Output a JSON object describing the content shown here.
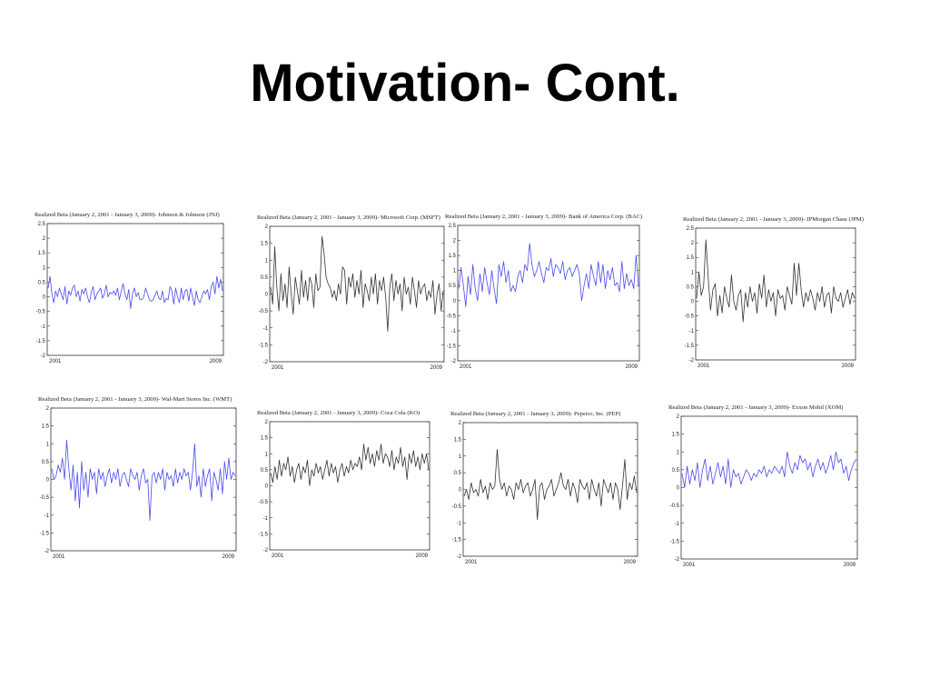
{
  "slide": {
    "title": "Motivation- Cont."
  },
  "chart_data": [
    {
      "type": "line",
      "title": "Realized Beta (January 2, 2001 - January 3, 2009)- Johnson & Johnson (JNJ)",
      "color": "#4a4af0",
      "ylim": [
        -2,
        2.5
      ],
      "yticks": [
        "2.5",
        "2",
        "1.5",
        "1",
        "0.5",
        "0",
        "-0.5",
        "-1",
        "-1.5",
        "-2"
      ],
      "x_labels": [
        "2001",
        "2009"
      ],
      "series": [
        {
          "values": [
            0.3,
            0.7,
            0.1,
            -0.2,
            0.2,
            0.0,
            0.3,
            0.1,
            -0.1,
            0.35,
            -0.25,
            0.2,
            0.05,
            0.3,
            0.4,
            0.0,
            0.2,
            -0.15,
            0.25,
            0.1,
            0.3,
            0.0,
            -0.2,
            0.15,
            0.35,
            -0.1,
            0.1,
            0.2,
            0.3,
            -0.05,
            0.1,
            0.4,
            0.0,
            0.15,
            0.1,
            0.2,
            0.05,
            0.3,
            -0.1,
            0.2,
            0.45,
            0.1,
            -0.1,
            0.25,
            -0.4,
            0.1,
            0.3,
            0.0,
            0.15,
            -0.1,
            -0.1,
            0.0,
            0.3,
            0.1,
            -0.1,
            -0.15,
            -0.1,
            0.05,
            0.2,
            -0.05,
            -0.1,
            0.2,
            -0.2,
            -0.05,
            -0.1,
            0.35,
            0.2,
            -0.25,
            0.3,
            0.0,
            -0.2,
            0.3,
            -0.1,
            0.2,
            0.25,
            -0.15,
            0.3,
            0.0,
            -0.3,
            0.2,
            -0.1,
            -0.2,
            0.0,
            0.2,
            0.1,
            0.25,
            -0.1,
            0.35,
            0.5,
            0.1,
            0.7,
            0.3,
            0.6,
            0.2
          ]
        }
      ]
    },
    {
      "type": "line",
      "title": "Realized Beta (January 2, 2001 - January 3, 2009)- Microsoft Corp. (MSFT)",
      "color": "#333333",
      "ylim": [
        -2,
        2
      ],
      "yticks": [
        "2",
        "1.5",
        "1",
        "0.5",
        "0",
        "-0.5",
        "-1",
        "-1.5",
        "-2"
      ],
      "x_labels": [
        "2001",
        "2009"
      ],
      "series": [
        {
          "values": [
            0.2,
            -0.3,
            1.4,
            0.2,
            -0.5,
            0.6,
            -0.2,
            0.3,
            -0.4,
            0.8,
            0.0,
            -0.6,
            0.5,
            0.1,
            -0.3,
            0.7,
            -0.1,
            0.4,
            -0.2,
            0.5,
            0.3,
            -0.4,
            0.6,
            0.1,
            0.2,
            1.7,
            1.2,
            0.5,
            0.3,
            0.2,
            -0.1,
            0.1,
            -0.2,
            0.3,
            0.0,
            0.8,
            0.7,
            -0.3,
            0.5,
            0.2,
            0.6,
            -0.1,
            0.4,
            0.0,
            0.7,
            -0.4,
            0.3,
            0.1,
            -0.2,
            0.5,
            0.0,
            0.6,
            -0.3,
            0.4,
            0.1,
            0.5,
            -0.1,
            -1.1,
            0.2,
            0.6,
            -0.2,
            0.4,
            0.0,
            0.3,
            -0.5,
            0.5,
            0.0,
            0.2,
            -0.3,
            0.5,
            0.1,
            -0.4,
            0.4,
            0.0,
            0.2,
            0.3,
            -0.2,
            0.1,
            -0.1,
            0.4,
            -0.6,
            0.0,
            0.3,
            -0.5,
            0.1
          ]
        }
      ]
    },
    {
      "type": "line",
      "title": "Realized Beta (January 2, 2001 - January 3, 2009)- Bank of America Corp. (BAC)",
      "color": "#4a4af0",
      "ylim": [
        -2,
        2.5
      ],
      "yticks": [
        "2.5",
        "2",
        "1.5",
        "1",
        "0.5",
        "0",
        "-0.5",
        "-1",
        "-1.5",
        "-2"
      ],
      "x_labels": [
        "2001",
        "2009"
      ],
      "series": [
        {
          "values": [
            0.4,
            1.1,
            0.5,
            -0.2,
            0.8,
            0.2,
            1.2,
            0.4,
            0.0,
            0.9,
            0.3,
            1.1,
            0.6,
            0.2,
            1.0,
            0.4,
            -0.1,
            1.2,
            0.8,
            1.3,
            0.6,
            1.0,
            0.3,
            0.5,
            0.3,
            0.8,
            1.0,
            0.6,
            1.2,
            1.0,
            1.9,
            1.2,
            0.8,
            1.0,
            1.3,
            0.9,
            0.6,
            1.1,
            1.0,
            1.4,
            0.8,
            1.2,
            1.1,
            0.9,
            1.3,
            0.7,
            1.0,
            1.1,
            0.8,
            1.0,
            1.2,
            0.9,
            0.0,
            0.5,
            0.9,
            0.4,
            1.2,
            0.8,
            0.5,
            1.3,
            0.6,
            1.2,
            0.4,
            1.0,
            0.7,
            1.1,
            0.5,
            0.6,
            0.3,
            1.3,
            0.4,
            0.9,
            0.5,
            0.7,
            0.4,
            1.5,
            0.5
          ]
        }
      ]
    },
    {
      "type": "line",
      "title": "Realized Beta (January 2, 2001 - January 3, 2009)- JPMorgan Chase (JPM)",
      "color": "#333333",
      "ylim": [
        -2,
        2.5
      ],
      "yticks": [
        "2.5",
        "2",
        "1.5",
        "1",
        "0.5",
        "0",
        "-0.5",
        "-1",
        "-1.5",
        "-2"
      ],
      "x_labels": [
        "2001",
        "2009"
      ],
      "series": [
        {
          "values": [
            0.1,
            1.0,
            0.2,
            0.5,
            2.1,
            0.8,
            -0.3,
            0.4,
            0.6,
            -0.5,
            0.2,
            -0.4,
            0.5,
            0.1,
            -0.2,
            0.9,
            0.0,
            -0.3,
            0.2,
            0.4,
            -0.7,
            0.3,
            -0.2,
            0.5,
            0.0,
            0.3,
            -0.4,
            0.6,
            0.1,
            0.9,
            -0.2,
            0.4,
            0.0,
            0.3,
            -0.5,
            0.4,
            0.1,
            0.2,
            -0.3,
            0.5,
            0.2,
            -0.1,
            1.3,
            0.2,
            1.3,
            0.4,
            -0.2,
            0.3,
            0.0,
            0.4,
            0.1,
            -0.3,
            0.3,
            0.0,
            0.5,
            -0.2,
            0.2,
            0.3,
            -0.4,
            0.5,
            0.1,
            0.0,
            0.3,
            -0.2,
            0.1,
            0.4,
            -0.1,
            0.3,
            0.1
          ]
        }
      ]
    },
    {
      "type": "line",
      "title": "Realized Beta (January 2, 2001 - January 3, 2009)- Wal-Mart Stores Inc. (WMT)",
      "color": "#4a4af0",
      "ylim": [
        -2,
        2
      ],
      "yticks": [
        "2",
        "1.5",
        "1",
        "0.5",
        "0",
        "-0.5",
        "-1",
        "-1.5",
        "-2"
      ],
      "x_labels": [
        "2001",
        "2009"
      ],
      "series": [
        {
          "values": [
            0.3,
            0.0,
            0.1,
            0.4,
            0.2,
            0.6,
            0.0,
            1.1,
            0.3,
            -0.3,
            0.4,
            -0.6,
            0.2,
            -0.8,
            0.5,
            -0.3,
            0.2,
            -0.5,
            0.3,
            0.0,
            0.2,
            -0.4,
            0.3,
            0.0,
            0.2,
            -0.2,
            0.1,
            0.3,
            -0.1,
            0.2,
            0.0,
            0.3,
            -0.2,
            0.1,
            0.2,
            0.0,
            -0.2,
            0.3,
            0.1,
            0.0,
            0.2,
            -0.3,
            0.1,
            0.3,
            -0.1,
            0.0,
            -1.15,
            0.1,
            0.2,
            -0.1,
            0.2,
            0.0,
            0.3,
            -0.3,
            0.2,
            0.0,
            0.1,
            -0.2,
            0.3,
            -0.1,
            0.2,
            0.0,
            0.3,
            0.1,
            0.2,
            -0.3,
            0.2,
            1.0,
            -0.2,
            0.1,
            -0.5,
            0.3,
            -0.2,
            0.1,
            0.3,
            -0.6,
            0.2,
            0.0,
            -0.3,
            0.3,
            -0.4,
            0.5,
            0.0,
            0.6,
            0.0,
            0.2,
            0.1
          ]
        }
      ]
    },
    {
      "type": "line",
      "title": "Realized Beta (January 2, 2001 - January 3, 2009)- Coca Cola (KO)",
      "color": "#333333",
      "ylim": [
        -2,
        2
      ],
      "yticks": [
        "2",
        "1.5",
        "1",
        "0.5",
        "0",
        "-0.5",
        "-1",
        "-1.5",
        "-2"
      ],
      "x_labels": [
        "2001",
        "2009"
      ],
      "series": [
        {
          "values": [
            0.4,
            0.1,
            0.6,
            0.2,
            0.8,
            0.3,
            0.7,
            0.5,
            0.9,
            0.3,
            0.6,
            0.1,
            0.5,
            0.7,
            0.2,
            0.6,
            0.4,
            0.8,
            0.0,
            0.5,
            0.3,
            0.7,
            0.4,
            0.6,
            0.2,
            0.5,
            0.8,
            0.3,
            0.7,
            0.4,
            0.6,
            0.1,
            0.5,
            0.7,
            0.3,
            0.6,
            0.4,
            0.8,
            0.5,
            0.7,
            0.6,
            0.9,
            0.5,
            1.3,
            0.8,
            1.2,
            0.7,
            1.0,
            0.6,
            1.1,
            0.8,
            1.3,
            0.7,
            1.0,
            0.9,
            0.6,
            1.1,
            0.5,
            0.9,
            0.7,
            1.2,
            0.6,
            0.9,
            0.2,
            1.0,
            0.7,
            1.1,
            0.6,
            0.9,
            0.5,
            1.0,
            0.7,
            1.0,
            0.5
          ]
        }
      ]
    },
    {
      "type": "line",
      "title": "Realized Beta (January 2, 2001 - January 3, 2009)- Pepsico, Inc. (PEP)",
      "color": "#333333",
      "ylim": [
        -2,
        2
      ],
      "yticks": [
        "2",
        "1.5",
        "1",
        "0.5",
        "0",
        "-0.5",
        "-1",
        "-1.5",
        "-2"
      ],
      "x_labels": [
        "2001",
        "2009"
      ],
      "series": [
        {
          "values": [
            -0.2,
            0.0,
            -0.3,
            0.2,
            -0.1,
            0.0,
            -0.2,
            0.3,
            -0.1,
            0.1,
            -0.3,
            0.2,
            0.0,
            0.1,
            1.2,
            0.3,
            0.0,
            0.2,
            -0.2,
            0.1,
            0.0,
            -0.3,
            0.2,
            0.0,
            0.3,
            -0.1,
            0.1,
            0.2,
            -0.2,
            0.0,
            0.3,
            -0.9,
            0.1,
            0.2,
            -0.3,
            0.0,
            0.1,
            0.3,
            -0.2,
            0.0,
            0.2,
            0.5,
            0.1,
            0.0,
            0.3,
            -0.2,
            0.2,
            0.0,
            -0.4,
            0.3,
            0.1,
            0.0,
            0.2,
            -0.3,
            0.3,
            0.0,
            -0.2,
            0.2,
            -0.5,
            0.3,
            0.1,
            -0.1,
            0.2,
            -0.3,
            0.2,
            0.0,
            -0.6,
            0.1,
            0.9,
            -0.3,
            0.2,
            0.0,
            0.4,
            -0.1
          ]
        }
      ]
    },
    {
      "type": "line",
      "title": "Realized Beta (January 2, 2001 - January 3, 2009)- Exxon Mobil (XOM)",
      "color": "#4a4af0",
      "ylim": [
        -2,
        2
      ],
      "yticks": [
        "2",
        "1.5",
        "1",
        "0.5",
        "0",
        "-0.5",
        "-1",
        "-1.5",
        "-2"
      ],
      "x_labels": [
        "2001",
        "2009"
      ],
      "series": [
        {
          "values": [
            0.4,
            0.0,
            0.6,
            0.1,
            0.5,
            0.2,
            0.7,
            0.0,
            0.5,
            0.8,
            0.2,
            0.6,
            0.1,
            0.4,
            0.7,
            0.3,
            0.6,
            0.1,
            0.8,
            0.0,
            0.5,
            0.3,
            0.4,
            0.1,
            0.3,
            0.5,
            0.4,
            0.2,
            0.4,
            0.3,
            0.5,
            0.4,
            0.6,
            0.3,
            0.5,
            0.4,
            0.6,
            0.5,
            0.4,
            0.6,
            0.3,
            1.0,
            0.6,
            0.4,
            0.7,
            0.5,
            0.9,
            0.7,
            0.8,
            0.5,
            0.7,
            0.3,
            0.6,
            0.8,
            0.5,
            0.7,
            0.4,
            0.6,
            0.9,
            0.5,
            1.0,
            0.7,
            0.8,
            0.4,
            0.6,
            0.2,
            0.5,
            0.7,
            0.8
          ]
        }
      ]
    }
  ]
}
